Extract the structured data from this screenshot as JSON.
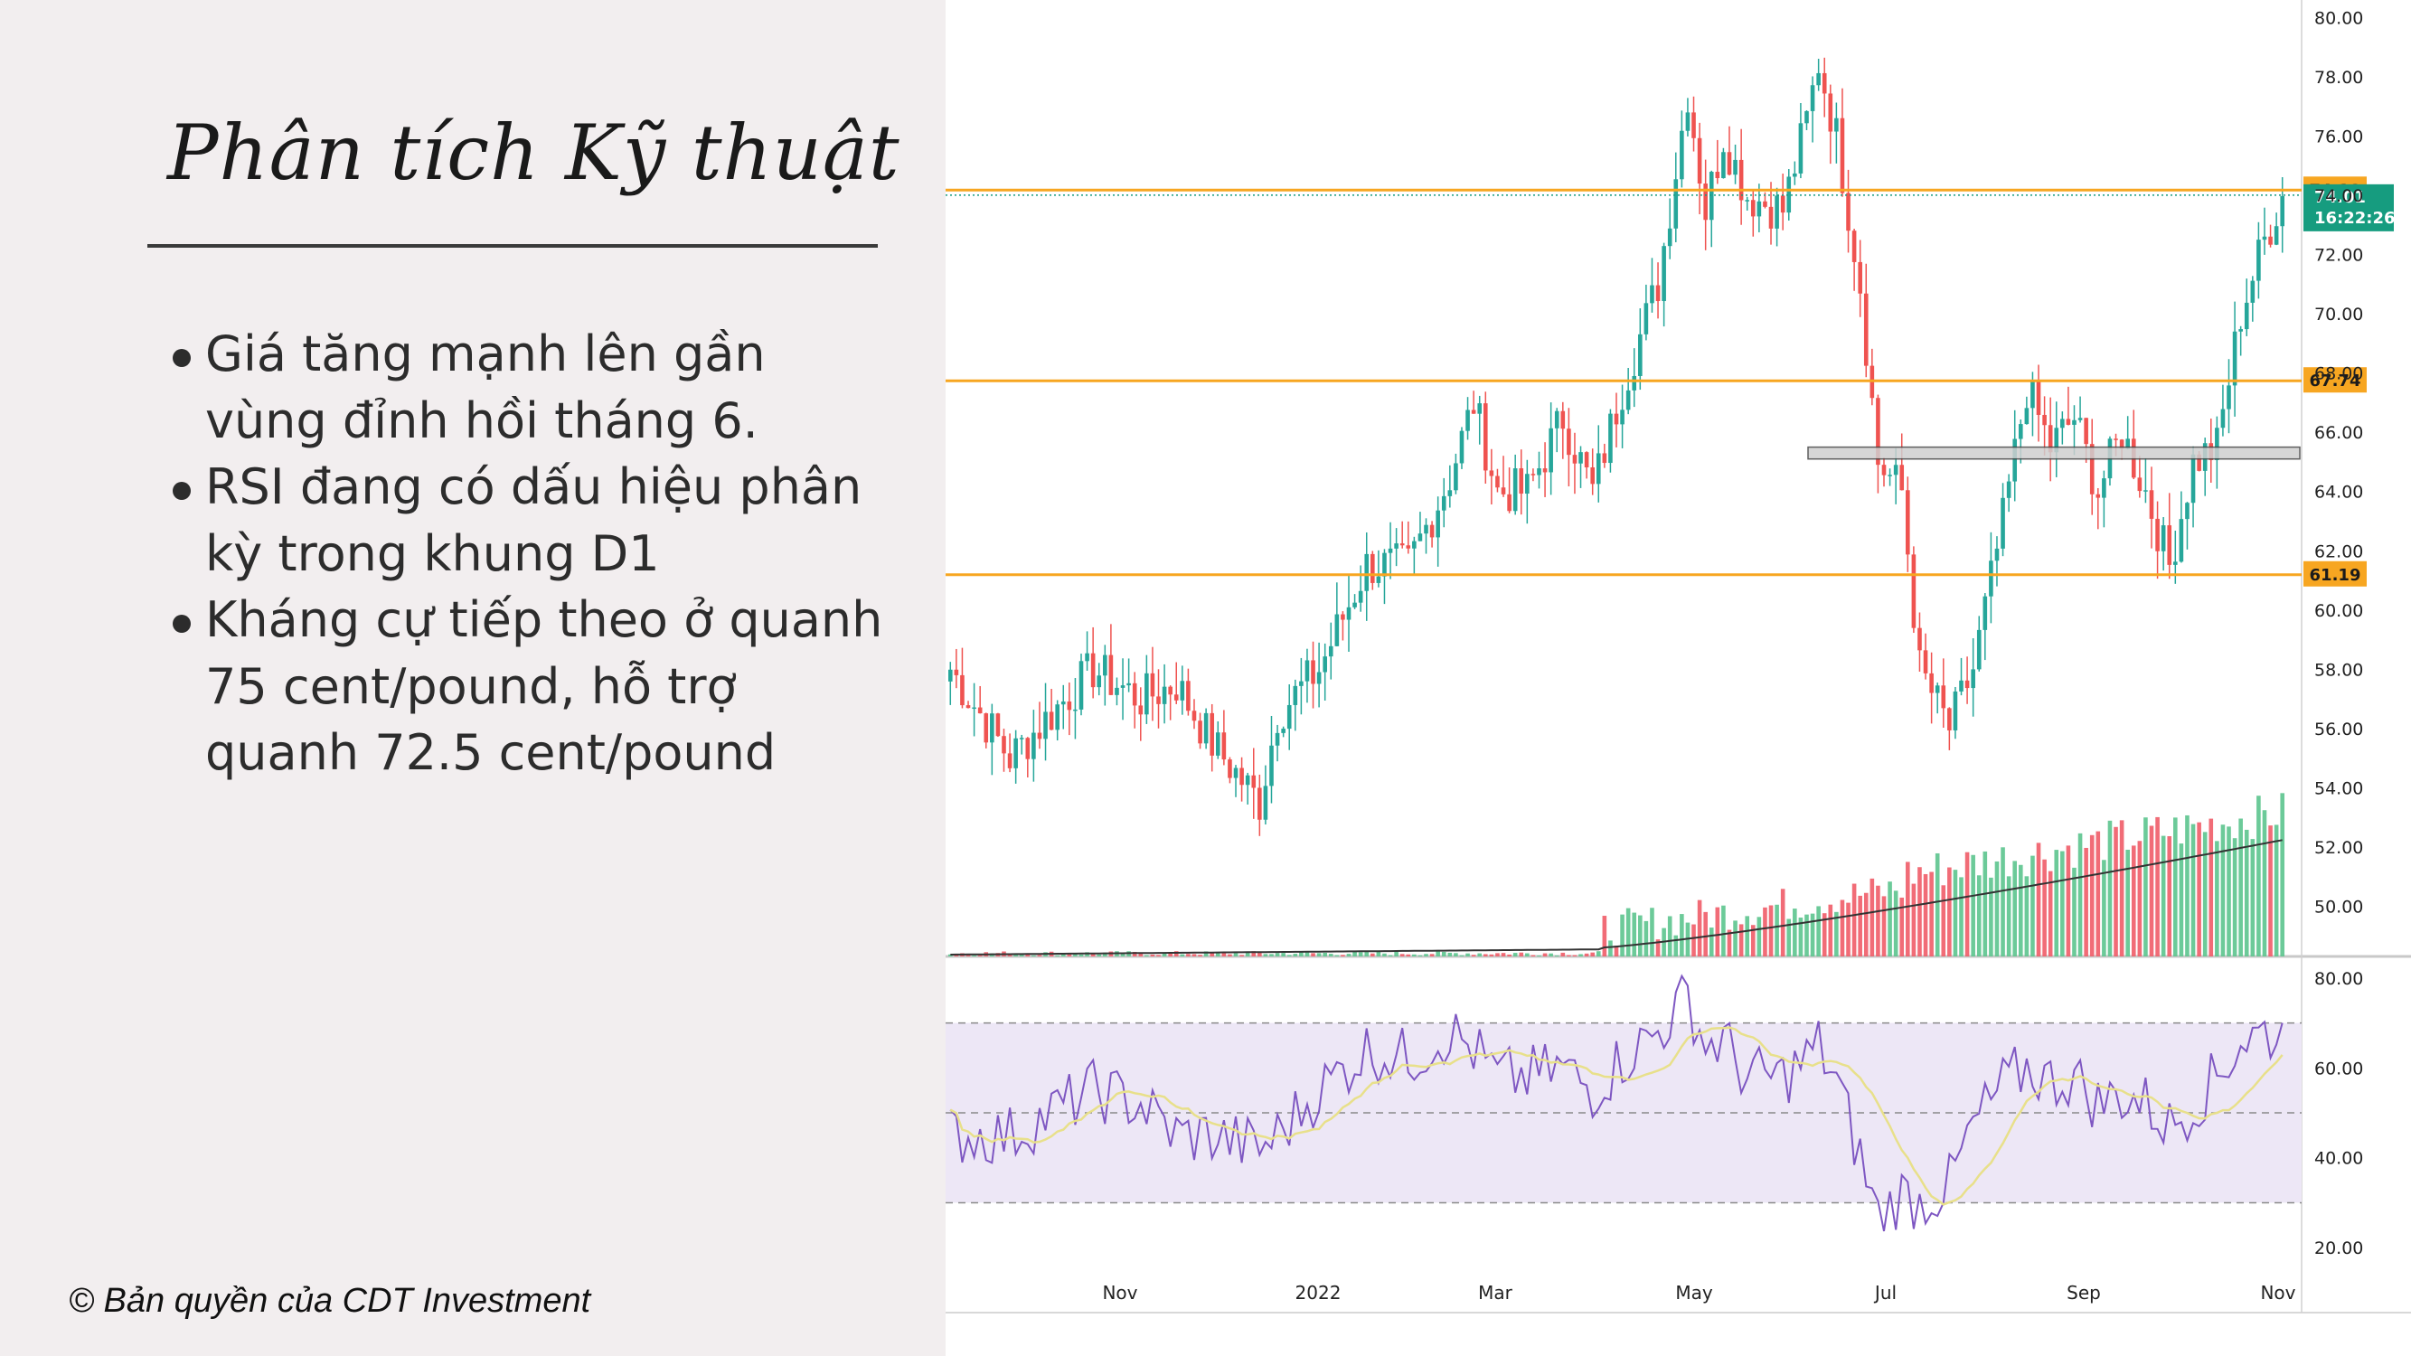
{
  "slide": {
    "title": "Phân tích Kỹ thuật",
    "bullets": [
      "Giá tăng mạnh lên gần vùng đỉnh hồi tháng 6.",
      "RSI đang có dấu hiệu phân kỳ trong khung D1",
      "Kháng cự tiếp theo ở quanh 75 cent/pound, hỗ trợ quanh 72.5 cent/pound"
    ],
    "copyright": "© Bản quyền của CDT Investment"
  },
  "chart_data": {
    "type": "candlestick",
    "x_labels": [
      "Nov",
      "2022",
      "Mar",
      "May",
      "Jul",
      "Sep",
      "Nov"
    ],
    "y_ticks": [
      "80.00",
      "78.00",
      "76.00",
      "74.00",
      "72.00",
      "70.00",
      "68.00",
      "66.00",
      "64.00",
      "62.00",
      "60.00",
      "58.00",
      "56.00",
      "54.00",
      "52.00",
      "50.00"
    ],
    "ylim": [
      48.3,
      80.6
    ],
    "price_keypoints": [
      {
        "bar": 0,
        "price": 58
      },
      {
        "bar": 10,
        "price": 55
      },
      {
        "bar": 24,
        "price": 58
      },
      {
        "bar": 32,
        "price": 57
      },
      {
        "bar": 38,
        "price": 57.5
      },
      {
        "bar": 44,
        "price": 55.5
      },
      {
        "bar": 52,
        "price": 53.5
      },
      {
        "bar": 55,
        "price": 56.5
      },
      {
        "bar": 62,
        "price": 58
      },
      {
        "bar": 70,
        "price": 61.5
      },
      {
        "bar": 77,
        "price": 61.5
      },
      {
        "bar": 84,
        "price": 64.5
      },
      {
        "bar": 88,
        "price": 67
      },
      {
        "bar": 92,
        "price": 64
      },
      {
        "bar": 97,
        "price": 64
      },
      {
        "bar": 103,
        "price": 66.5
      },
      {
        "bar": 108,
        "price": 64
      },
      {
        "bar": 113,
        "price": 67.5
      },
      {
        "bar": 119,
        "price": 71
      },
      {
        "bar": 124,
        "price": 77.5
      },
      {
        "bar": 127,
        "price": 73.5
      },
      {
        "bar": 130,
        "price": 76
      },
      {
        "bar": 134,
        "price": 74
      },
      {
        "bar": 140,
        "price": 73.5
      },
      {
        "bar": 144,
        "price": 76.5
      },
      {
        "bar": 146,
        "price": 78.5
      },
      {
        "bar": 149,
        "price": 76
      },
      {
        "bar": 153,
        "price": 71
      },
      {
        "bar": 156,
        "price": 65
      },
      {
        "bar": 160,
        "price": 64
      },
      {
        "bar": 163,
        "price": 58
      },
      {
        "bar": 168,
        "price": 56
      },
      {
        "bar": 172,
        "price": 58
      },
      {
        "bar": 177,
        "price": 63
      },
      {
        "bar": 181,
        "price": 67.5
      },
      {
        "bar": 185,
        "price": 65.5
      },
      {
        "bar": 189,
        "price": 66.5
      },
      {
        "bar": 193,
        "price": 64
      },
      {
        "bar": 197,
        "price": 66
      },
      {
        "bar": 201,
        "price": 64
      },
      {
        "bar": 205,
        "price": 61.5
      },
      {
        "bar": 209,
        "price": 65
      },
      {
        "bar": 213,
        "price": 65.5
      },
      {
        "bar": 217,
        "price": 70
      },
      {
        "bar": 221,
        "price": 72.5
      },
      {
        "bar": 224,
        "price": 74
      }
    ],
    "rsi_keypoints": [
      {
        "bar": 0,
        "rsi": 45
      },
      {
        "bar": 10,
        "rsi": 45
      },
      {
        "bar": 24,
        "rsi": 55
      },
      {
        "bar": 32,
        "rsi": 52
      },
      {
        "bar": 38,
        "rsi": 45
      },
      {
        "bar": 44,
        "rsi": 45
      },
      {
        "bar": 52,
        "rsi": 42
      },
      {
        "bar": 55,
        "rsi": 45
      },
      {
        "bar": 62,
        "rsi": 55
      },
      {
        "bar": 70,
        "rsi": 64
      },
      {
        "bar": 77,
        "rsi": 62
      },
      {
        "bar": 84,
        "rsi": 68
      },
      {
        "bar": 88,
        "rsi": 64
      },
      {
        "bar": 92,
        "rsi": 58
      },
      {
        "bar": 97,
        "rsi": 58
      },
      {
        "bar": 103,
        "rsi": 60
      },
      {
        "bar": 108,
        "rsi": 55
      },
      {
        "bar": 113,
        "rsi": 62
      },
      {
        "bar": 119,
        "rsi": 68
      },
      {
        "bar": 124,
        "rsi": 76
      },
      {
        "bar": 127,
        "rsi": 65
      },
      {
        "bar": 130,
        "rsi": 66
      },
      {
        "bar": 134,
        "rsi": 58
      },
      {
        "bar": 140,
        "rsi": 58
      },
      {
        "bar": 144,
        "rsi": 62
      },
      {
        "bar": 146,
        "rsi": 65
      },
      {
        "bar": 149,
        "rsi": 57
      },
      {
        "bar": 153,
        "rsi": 40
      },
      {
        "bar": 156,
        "rsi": 27
      },
      {
        "bar": 160,
        "rsi": 32
      },
      {
        "bar": 163,
        "rsi": 30
      },
      {
        "bar": 168,
        "rsi": 34
      },
      {
        "bar": 172,
        "rsi": 47
      },
      {
        "bar": 177,
        "rsi": 56
      },
      {
        "bar": 181,
        "rsi": 60
      },
      {
        "bar": 185,
        "rsi": 57
      },
      {
        "bar": 189,
        "rsi": 58
      },
      {
        "bar": 193,
        "rsi": 52
      },
      {
        "bar": 197,
        "rsi": 54
      },
      {
        "bar": 201,
        "rsi": 52
      },
      {
        "bar": 205,
        "rsi": 47
      },
      {
        "bar": 209,
        "rsi": 52
      },
      {
        "bar": 213,
        "rsi": 58
      },
      {
        "bar": 217,
        "rsi": 66
      },
      {
        "bar": 221,
        "rsi": 68
      },
      {
        "bar": 224,
        "rsi": 67
      }
    ],
    "horizontal_lines": [
      {
        "price": 74.18,
        "label": "74.18",
        "color": "#f7a621"
      },
      {
        "price": 67.74,
        "label": "67.74",
        "color": "#f7a621"
      },
      {
        "price": 61.19,
        "label": "61.19",
        "color": "#f7a621"
      }
    ],
    "support_zone": {
      "low": 65.1,
      "high": 65.5
    },
    "last_price": {
      "price": "74.01",
      "countdown": "16:22:26",
      "color": "#169c7f"
    },
    "rsi_panel": {
      "y_ticks": [
        "80.00",
        "60.00",
        "40.00",
        "20.00"
      ],
      "ylim": [
        14,
        84
      ],
      "upper": 70,
      "middle": 50,
      "lower": 30
    },
    "colors": {
      "up": "#26a69a",
      "down": "#ef5350",
      "volume_ma": "#333333",
      "rsi_line": "#7e57c2",
      "rsi_ma": "#e8e08a",
      "rsi_band": "#ede7f6"
    }
  }
}
